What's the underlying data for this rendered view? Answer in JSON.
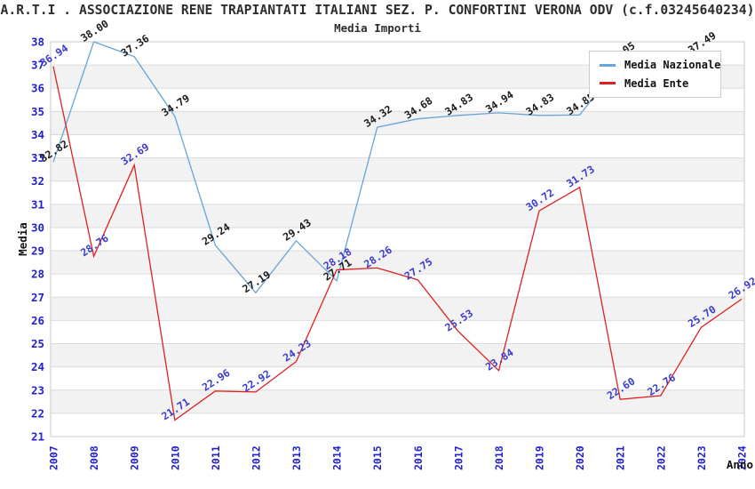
{
  "chart": {
    "title": "A.R.T.I . ASSOCIAZIONE RENE TRAPIANTATI ITALIANI SEZ. P. CONFORTINI VERONA ODV (c.f.03245640234)",
    "subtitle": "Media Importi",
    "y_axis_title": "Media",
    "x_axis_title": "Anno"
  },
  "legend": {
    "items": [
      {
        "label": "Media Nazionale",
        "color": "#69A3DC"
      },
      {
        "label": "Media Ente",
        "color": "#E02020"
      }
    ]
  },
  "chart_data": {
    "type": "line",
    "title": "Media Importi",
    "xlabel": "Anno",
    "ylabel": "Media",
    "x": [
      2007,
      2008,
      2009,
      2010,
      2011,
      2012,
      2013,
      2014,
      2015,
      2016,
      2017,
      2018,
      2019,
      2020,
      2021,
      2022,
      2023,
      2024
    ],
    "ylim": [
      21,
      38
    ],
    "grid": true,
    "band_fill_between_even_and_odd_ticks": true,
    "legend_position": "top-right",
    "series": [
      {
        "name": "Media Nazionale",
        "color": "#69A3DC",
        "label_color": "#1A1A1A",
        "values": [
          32.82,
          38.0,
          37.36,
          34.79,
          29.24,
          27.19,
          29.43,
          27.71,
          34.32,
          34.68,
          34.83,
          34.94,
          34.83,
          34.85,
          37.05,
          null,
          37.49,
          null
        ]
      },
      {
        "name": "Media Ente",
        "color": "#E02020",
        "label_color": "#3A3AD0",
        "values": [
          36.94,
          28.76,
          32.69,
          21.71,
          22.96,
          22.92,
          24.23,
          28.18,
          28.26,
          27.75,
          25.53,
          23.84,
          30.72,
          31.73,
          22.6,
          22.76,
          25.7,
          26.92
        ]
      }
    ]
  },
  "colors": {
    "background": "#FFFFFF",
    "band": "#F2F2F2",
    "gridline": "#DBDBDB",
    "plot_border": "#C9C9C9",
    "tick_label": "#2222CC",
    "title_text": "#2E2E2E",
    "axis_title": "#111111"
  }
}
